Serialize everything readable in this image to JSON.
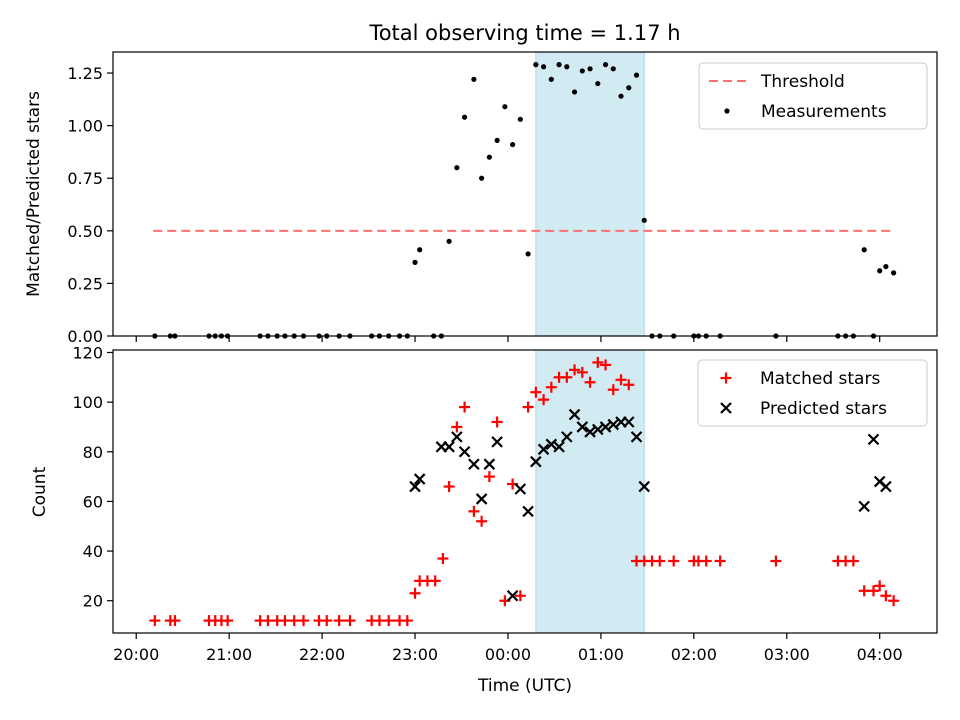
{
  "chart_data": [
    {
      "type": "scatter",
      "title": "Total observing time = 1.17 h",
      "xlabel": "",
      "ylabel": "Matched/Predicted stars",
      "xlim": [
        "20:00",
        "04:30"
      ],
      "ylim": [
        0,
        1.35
      ],
      "y_ticks": [
        "0.00",
        "0.25",
        "0.50",
        "0.75",
        "1.00",
        "1.25"
      ],
      "x_tick_labels_visible": false,
      "legend_position": "top-right",
      "highlight_span": {
        "start": "00:18",
        "end": "01:28",
        "color": "#add8e6"
      },
      "series": [
        {
          "name": "Threshold",
          "style": "dashed-line",
          "color": "#ff7070",
          "x": [
            "20:11",
            "04:08"
          ],
          "y": [
            0.5,
            0.5
          ]
        },
        {
          "name": "Measurements",
          "style": "dot",
          "color": "#000000",
          "x": [
            "20:12",
            "20:22",
            "20:25",
            "20:47",
            "20:51",
            "20:55",
            "20:59",
            "21:20",
            "21:25",
            "21:31",
            "21:36",
            "21:42",
            "21:48",
            "21:58",
            "22:03",
            "22:11",
            "22:18",
            "22:32",
            "22:37",
            "22:43",
            "22:50",
            "22:55",
            "23:00",
            "23:03",
            "23:12",
            "23:17",
            "23:22",
            "23:27",
            "23:32",
            "23:38",
            "23:43",
            "23:48",
            "23:53",
            "23:58",
            "00:03",
            "00:08",
            "00:13",
            "00:18",
            "00:23",
            "00:28",
            "00:33",
            "00:38",
            "00:43",
            "00:48",
            "00:53",
            "00:58",
            "01:03",
            "01:08",
            "01:13",
            "01:18",
            "01:23",
            "01:28",
            "01:33",
            "01:38",
            "01:47",
            "02:00",
            "02:03",
            "02:08",
            "02:17",
            "02:53",
            "03:33",
            "03:38",
            "03:43",
            "03:50",
            "03:56",
            "04:00",
            "04:04",
            "04:09"
          ],
          "y": [
            0,
            0,
            0,
            0,
            0,
            0,
            0,
            0,
            0,
            0,
            0,
            0,
            0,
            0,
            0,
            0,
            0,
            0,
            0,
            0,
            0,
            0,
            0.35,
            0.41,
            0,
            0,
            0.45,
            0.8,
            1.04,
            1.22,
            0.75,
            0.85,
            0.93,
            1.09,
            0.91,
            1.03,
            0.39,
            1.29,
            1.28,
            1.22,
            1.29,
            1.28,
            1.16,
            1.26,
            1.27,
            1.2,
            1.29,
            1.27,
            1.14,
            1.18,
            1.24,
            0.55,
            0,
            0,
            0,
            0,
            0,
            0,
            0,
            0,
            0,
            0,
            0,
            0.41,
            0,
            0.31,
            0.33,
            0.3
          ]
        }
      ]
    },
    {
      "type": "scatter",
      "title": "",
      "xlabel": "Time (UTC)",
      "ylabel": "Count",
      "xlim": [
        "20:00",
        "04:30"
      ],
      "ylim": [
        7,
        121
      ],
      "y_ticks": [
        "20",
        "40",
        "60",
        "80",
        "100",
        "120"
      ],
      "x_ticks": [
        "20:00",
        "21:00",
        "22:00",
        "23:00",
        "00:00",
        "01:00",
        "02:00",
        "03:00",
        "04:00"
      ],
      "legend_position": "top-right",
      "highlight_span": {
        "start": "00:18",
        "end": "01:28",
        "color": "#add8e6"
      },
      "series": [
        {
          "name": "Matched stars",
          "style": "plus",
          "color": "#ff0000",
          "x": [
            "20:12",
            "20:22",
            "20:25",
            "20:47",
            "20:51",
            "20:55",
            "20:59",
            "21:20",
            "21:25",
            "21:31",
            "21:36",
            "21:42",
            "21:48",
            "21:58",
            "22:03",
            "22:11",
            "22:18",
            "22:32",
            "22:37",
            "22:43",
            "22:50",
            "22:55",
            "23:00",
            "23:03",
            "23:08",
            "23:13",
            "23:18",
            "23:22",
            "23:27",
            "23:32",
            "23:38",
            "23:43",
            "23:48",
            "23:53",
            "23:58",
            "00:03",
            "00:08",
            "00:13",
            "00:18",
            "00:23",
            "00:28",
            "00:33",
            "00:38",
            "00:43",
            "00:48",
            "00:53",
            "00:58",
            "01:03",
            "01:08",
            "01:13",
            "01:18",
            "01:23",
            "01:28",
            "01:33",
            "01:38",
            "01:47",
            "02:00",
            "02:03",
            "02:08",
            "02:17",
            "02:53",
            "03:33",
            "03:38",
            "03:43",
            "03:50",
            "03:56",
            "04:00",
            "04:04",
            "04:09"
          ],
          "y": [
            12,
            12,
            12,
            12,
            12,
            12,
            12,
            12,
            12,
            12,
            12,
            12,
            12,
            12,
            12,
            12,
            12,
            12,
            12,
            12,
            12,
            12,
            23,
            28,
            28,
            28,
            37,
            66,
            90,
            98,
            56,
            52,
            70,
            92,
            20,
            67,
            22,
            98,
            104,
            101,
            106,
            110,
            110,
            113,
            112,
            108,
            116,
            115,
            105,
            109,
            107,
            36,
            36,
            36,
            36,
            36,
            36,
            36,
            36,
            36,
            36,
            36,
            36,
            36,
            24,
            24,
            26,
            22,
            20
          ]
        },
        {
          "name": "Predicted stars",
          "style": "cross",
          "color": "#000000",
          "x": [
            "23:00",
            "23:03",
            "23:17",
            "23:22",
            "23:27",
            "23:32",
            "23:38",
            "23:43",
            "23:48",
            "23:53",
            "00:03",
            "00:08",
            "00:13",
            "00:18",
            "00:23",
            "00:28",
            "00:33",
            "00:38",
            "00:43",
            "00:48",
            "00:53",
            "00:58",
            "01:03",
            "01:08",
            "01:13",
            "01:18",
            "01:23",
            "01:28",
            "03:50",
            "03:56",
            "04:00",
            "04:04"
          ],
          "y": [
            66,
            69,
            82,
            82,
            86,
            80,
            75,
            61,
            75,
            84,
            22,
            65,
            56,
            76,
            81,
            83,
            82,
            86,
            95,
            90,
            88,
            89,
            90,
            91,
            92,
            92,
            86,
            66,
            58,
            85,
            68,
            66
          ]
        }
      ]
    }
  ]
}
